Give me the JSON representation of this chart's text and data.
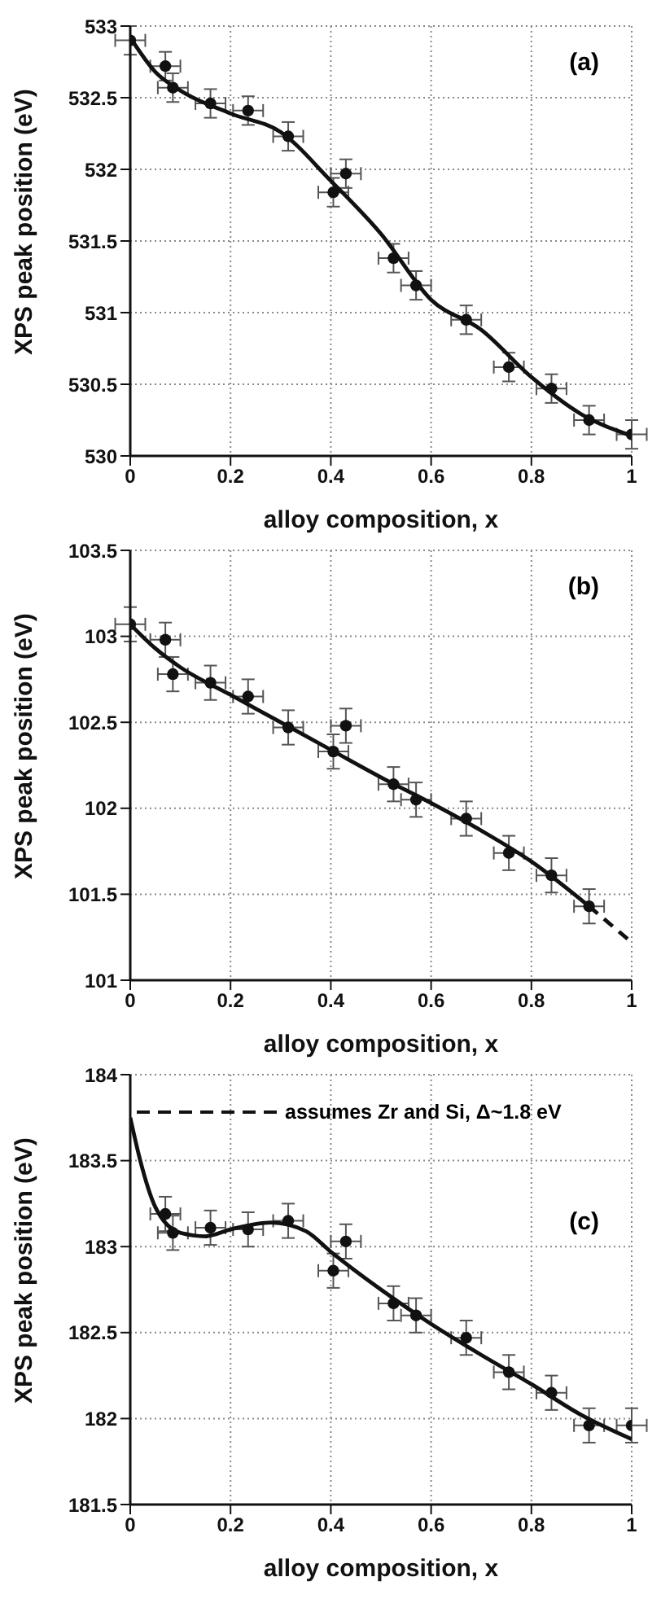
{
  "chart_data": [
    {
      "type": "scatter",
      "xlabel": "alloy composition, x",
      "ylabel": "XPS peak position (eV)",
      "xlim": [
        0,
        1
      ],
      "xticks": [
        0,
        0.2,
        0.4,
        0.6,
        0.8,
        1
      ],
      "ylim": [
        530,
        533
      ],
      "yticks": [
        530,
        530.5,
        531,
        531.5,
        532,
        532.5,
        533
      ],
      "grid": true,
      "marker": "circle",
      "annotations": [
        "(a)"
      ],
      "series": [
        {
          "color": "#111111",
          "x": [
            0,
            0.07,
            0.085,
            0.16,
            0.235,
            0.315,
            0.405,
            0.43,
            0.525,
            0.57,
            0.67,
            0.755,
            0.84,
            0.915,
            1
          ],
          "values": [
            532.9,
            532.72,
            532.57,
            532.46,
            532.41,
            532.23,
            531.84,
            531.97,
            531.38,
            531.19,
            530.95,
            530.62,
            530.47,
            530.25,
            530.15
          ],
          "errors": [
            0.1,
            0.1,
            0.1,
            0.1,
            0.1,
            0.1,
            0.1,
            0.1,
            0.1,
            0.1,
            0.1,
            0.1,
            0.1,
            0.1,
            0.1
          ],
          "xerrors": [
            0.03,
            0.03,
            0.03,
            0.03,
            0.03,
            0.03,
            0.03,
            0.03,
            0.03,
            0.03,
            0.03,
            0.03,
            0.03,
            0.03,
            0.03
          ]
        },
        {
          "type": "line",
          "color": "#111111",
          "line_style": "solid",
          "marker": "none",
          "x": [
            0,
            0.05,
            0.1,
            0.2,
            0.3,
            0.4,
            0.5,
            0.6,
            0.7,
            0.8,
            0.9,
            1
          ],
          "values": [
            532.92,
            532.68,
            532.55,
            532.39,
            532.26,
            531.92,
            531.55,
            531.09,
            530.88,
            530.55,
            530.29,
            530.14
          ]
        }
      ]
    },
    {
      "type": "scatter",
      "xlabel": "alloy composition, x",
      "ylabel": "XPS peak position (eV)",
      "xlim": [
        0,
        1
      ],
      "xticks": [
        0,
        0.2,
        0.4,
        0.6,
        0.8,
        1
      ],
      "ylim": [
        101,
        103.5
      ],
      "yticks": [
        101,
        101.5,
        102,
        102.5,
        103,
        103.5
      ],
      "grid": true,
      "marker": "circle",
      "annotations": [
        "(b)"
      ],
      "series": [
        {
          "color": "#111111",
          "x": [
            0,
            0.07,
            0.085,
            0.16,
            0.235,
            0.315,
            0.405,
            0.43,
            0.525,
            0.57,
            0.67,
            0.755,
            0.84,
            0.915
          ],
          "values": [
            103.07,
            102.98,
            102.78,
            102.73,
            102.65,
            102.47,
            102.33,
            102.48,
            102.14,
            102.05,
            101.94,
            101.74,
            101.61,
            101.43
          ],
          "errors": [
            0.1,
            0.1,
            0.1,
            0.1,
            0.1,
            0.1,
            0.1,
            0.1,
            0.1,
            0.1,
            0.1,
            0.1,
            0.1,
            0.1
          ],
          "xerrors": [
            0.03,
            0.03,
            0.03,
            0.03,
            0.03,
            0.03,
            0.03,
            0.03,
            0.03,
            0.03,
            0.03,
            0.03,
            0.03,
            0.03
          ]
        },
        {
          "type": "line",
          "color": "#111111",
          "line_style": "solid",
          "marker": "none",
          "x": [
            0,
            0.05,
            0.1,
            0.2,
            0.3,
            0.4,
            0.5,
            0.6,
            0.7,
            0.8,
            0.915
          ],
          "values": [
            103.07,
            102.93,
            102.82,
            102.66,
            102.5,
            102.34,
            102.18,
            102.03,
            101.87,
            101.69,
            101.43
          ]
        },
        {
          "type": "line",
          "color": "#111111",
          "line_style": "dashed",
          "marker": "none",
          "x": [
            0.915,
            1
          ],
          "values": [
            101.43,
            101.22
          ]
        }
      ]
    },
    {
      "type": "scatter",
      "xlabel": "alloy composition, x",
      "ylabel": "XPS peak position (eV)",
      "xlim": [
        0,
        1
      ],
      "xticks": [
        0,
        0.2,
        0.4,
        0.6,
        0.8,
        1
      ],
      "ylim": [
        181.5,
        184
      ],
      "yticks": [
        181.5,
        182,
        182.5,
        183,
        183.5,
        184
      ],
      "grid": true,
      "marker": "circle",
      "annotations": [
        "assumes Zr and Si, Δ~1.8 eV",
        "(c)"
      ],
      "series": [
        {
          "color": "#111111",
          "x": [
            0.07,
            0.085,
            0.16,
            0.235,
            0.315,
            0.405,
            0.43,
            0.525,
            0.57,
            0.67,
            0.755,
            0.84,
            0.915,
            1
          ],
          "values": [
            183.19,
            183.08,
            183.11,
            183.1,
            183.15,
            182.86,
            183.03,
            182.67,
            182.6,
            182.47,
            182.27,
            182.15,
            181.96,
            181.96
          ],
          "errors": [
            0.1,
            0.1,
            0.1,
            0.1,
            0.1,
            0.1,
            0.1,
            0.1,
            0.1,
            0.1,
            0.1,
            0.1,
            0.1,
            0.1
          ],
          "xerrors": [
            0.03,
            0.03,
            0.03,
            0.03,
            0.03,
            0.03,
            0.03,
            0.03,
            0.03,
            0.03,
            0.03,
            0.03,
            0.03,
            0.03
          ]
        },
        {
          "type": "line",
          "color": "#111111",
          "line_style": "solid",
          "marker": "none",
          "x": [
            0,
            0.02,
            0.05,
            0.1,
            0.15,
            0.2,
            0.28,
            0.35,
            0.4,
            0.5,
            0.6,
            0.7,
            0.8,
            0.9,
            1
          ],
          "values": [
            183.75,
            183.5,
            183.23,
            183.08,
            183.06,
            183.1,
            183.14,
            183.09,
            182.97,
            182.75,
            182.55,
            182.37,
            182.2,
            182.02,
            181.88
          ]
        }
      ]
    }
  ]
}
